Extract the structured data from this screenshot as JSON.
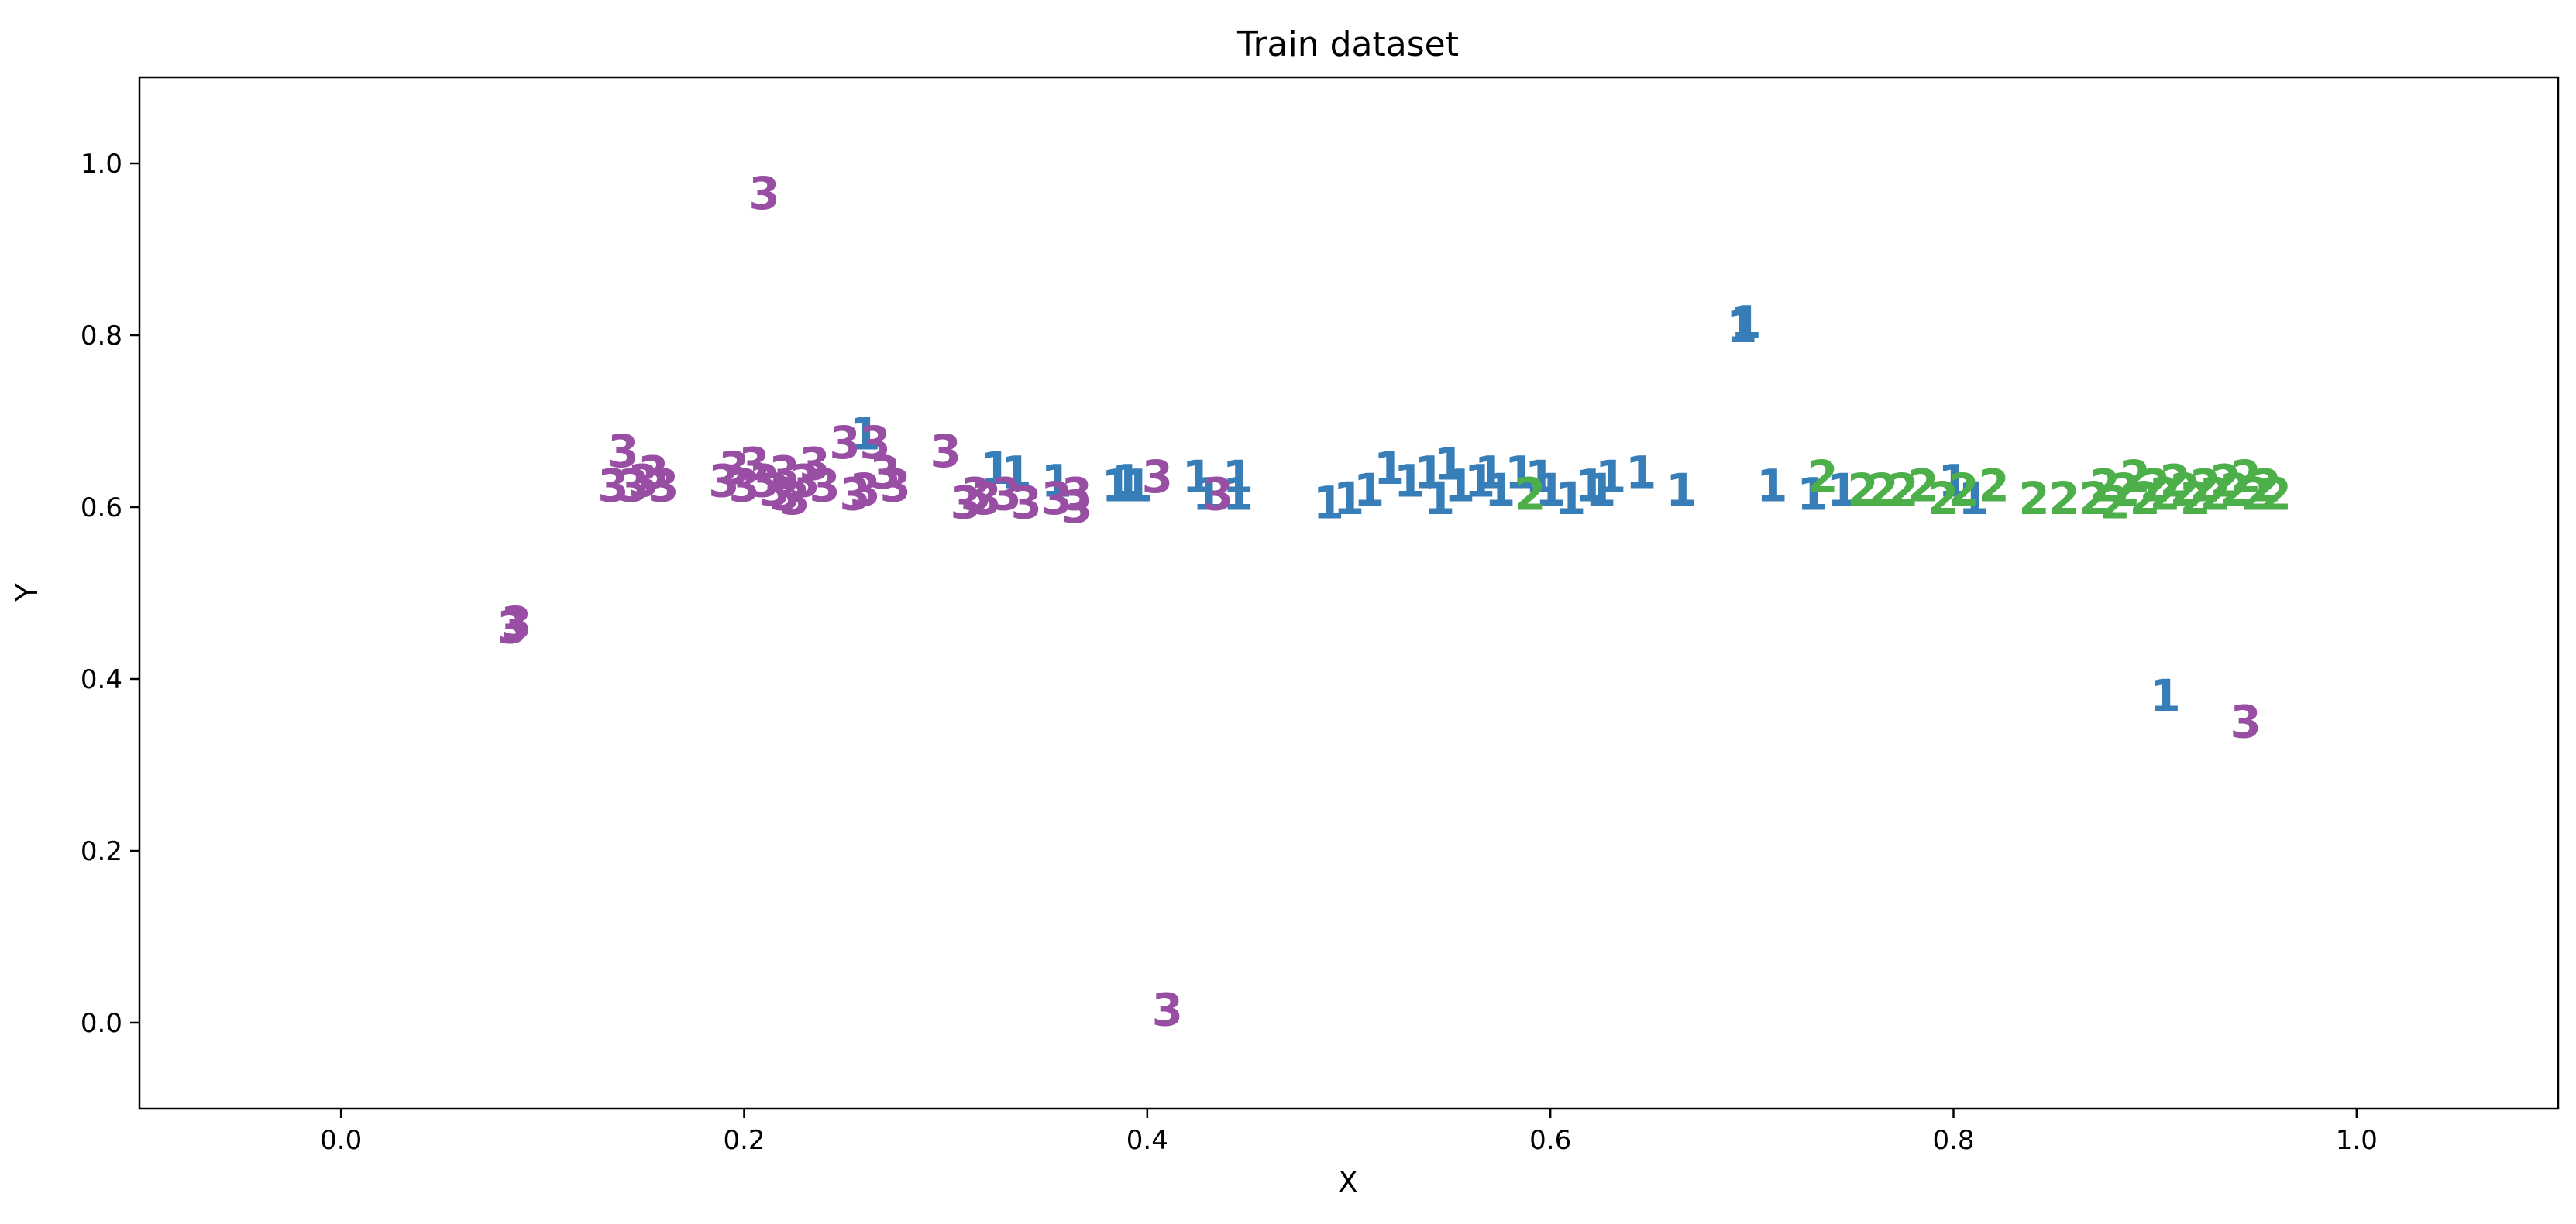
{
  "chart_data": {
    "type": "scatter",
    "title": "Train dataset",
    "xlabel": "X",
    "ylabel": "Y",
    "xlim": [
      -0.1,
      1.1
    ],
    "ylim": [
      -0.1,
      1.1
    ],
    "xticks": [
      "0.0",
      "0.2",
      "0.4",
      "0.6",
      "0.8",
      "1.0"
    ],
    "yticks": [
      "0.0",
      "0.2",
      "0.4",
      "0.6",
      "0.8",
      "1.0"
    ],
    "xtick_values": [
      0.0,
      0.2,
      0.4,
      0.6,
      0.8,
      1.0
    ],
    "ytick_values": [
      0.0,
      0.2,
      0.4,
      0.6,
      0.8,
      1.0
    ],
    "grid": false,
    "marker": "class label text",
    "series": [
      {
        "label": "1",
        "color": "#377eb8",
        "points": [
          [
            0.695,
            0.81
          ],
          [
            0.697,
            0.815
          ],
          [
            0.905,
            0.38
          ],
          [
            0.26,
            0.685
          ],
          [
            0.325,
            0.645
          ],
          [
            0.335,
            0.64
          ],
          [
            0.355,
            0.63
          ],
          [
            0.385,
            0.625
          ],
          [
            0.395,
            0.625
          ],
          [
            0.425,
            0.635
          ],
          [
            0.445,
            0.635
          ],
          [
            0.43,
            0.615
          ],
          [
            0.445,
            0.615
          ],
          [
            0.49,
            0.605
          ],
          [
            0.5,
            0.61
          ],
          [
            0.51,
            0.62
          ],
          [
            0.52,
            0.645
          ],
          [
            0.53,
            0.63
          ],
          [
            0.54,
            0.64
          ],
          [
            0.545,
            0.61
          ],
          [
            0.55,
            0.65
          ],
          [
            0.555,
            0.625
          ],
          [
            0.565,
            0.63
          ],
          [
            0.575,
            0.62
          ],
          [
            0.585,
            0.64
          ],
          [
            0.595,
            0.635
          ],
          [
            0.6,
            0.62
          ],
          [
            0.61,
            0.61
          ],
          [
            0.625,
            0.62
          ],
          [
            0.63,
            0.635
          ],
          [
            0.645,
            0.64
          ],
          [
            0.665,
            0.62
          ],
          [
            0.71,
            0.625
          ],
          [
            0.73,
            0.615
          ],
          [
            0.745,
            0.62
          ],
          [
            0.8,
            0.63
          ],
          [
            0.81,
            0.61
          ],
          [
            0.39,
            0.63
          ],
          [
            0.62,
            0.625
          ],
          [
            0.57,
            0.64
          ]
        ]
      },
      {
        "label": "2",
        "color": "#4daf4a",
        "points": [
          [
            0.59,
            0.615
          ],
          [
            0.735,
            0.635
          ],
          [
            0.755,
            0.62
          ],
          [
            0.765,
            0.62
          ],
          [
            0.775,
            0.62
          ],
          [
            0.785,
            0.625
          ],
          [
            0.795,
            0.61
          ],
          [
            0.805,
            0.62
          ],
          [
            0.82,
            0.625
          ],
          [
            0.84,
            0.61
          ],
          [
            0.855,
            0.61
          ],
          [
            0.87,
            0.61
          ],
          [
            0.875,
            0.625
          ],
          [
            0.885,
            0.62
          ],
          [
            0.89,
            0.635
          ],
          [
            0.895,
            0.61
          ],
          [
            0.9,
            0.625
          ],
          [
            0.905,
            0.615
          ],
          [
            0.91,
            0.63
          ],
          [
            0.915,
            0.62
          ],
          [
            0.92,
            0.61
          ],
          [
            0.925,
            0.625
          ],
          [
            0.93,
            0.615
          ],
          [
            0.935,
            0.63
          ],
          [
            0.94,
            0.62
          ],
          [
            0.945,
            0.635
          ],
          [
            0.95,
            0.615
          ],
          [
            0.955,
            0.625
          ],
          [
            0.96,
            0.615
          ],
          [
            0.88,
            0.605
          ]
        ]
      },
      {
        "label": "3",
        "color": "#984ea3",
        "points": [
          [
            0.21,
            0.965
          ],
          [
            0.085,
            0.46
          ],
          [
            0.087,
            0.465
          ],
          [
            0.945,
            0.35
          ],
          [
            0.41,
            0.015
          ],
          [
            0.14,
            0.665
          ],
          [
            0.135,
            0.625
          ],
          [
            0.145,
            0.625
          ],
          [
            0.15,
            0.63
          ],
          [
            0.155,
            0.64
          ],
          [
            0.16,
            0.625
          ],
          [
            0.19,
            0.63
          ],
          [
            0.195,
            0.645
          ],
          [
            0.2,
            0.625
          ],
          [
            0.205,
            0.65
          ],
          [
            0.21,
            0.63
          ],
          [
            0.215,
            0.62
          ],
          [
            0.22,
            0.64
          ],
          [
            0.225,
            0.61
          ],
          [
            0.23,
            0.63
          ],
          [
            0.235,
            0.65
          ],
          [
            0.24,
            0.625
          ],
          [
            0.25,
            0.675
          ],
          [
            0.26,
            0.62
          ],
          [
            0.265,
            0.675
          ],
          [
            0.27,
            0.64
          ],
          [
            0.275,
            0.625
          ],
          [
            0.3,
            0.665
          ],
          [
            0.31,
            0.605
          ],
          [
            0.315,
            0.615
          ],
          [
            0.32,
            0.61
          ],
          [
            0.33,
            0.615
          ],
          [
            0.34,
            0.605
          ],
          [
            0.355,
            0.61
          ],
          [
            0.365,
            0.615
          ],
          [
            0.365,
            0.6
          ],
          [
            0.405,
            0.635
          ],
          [
            0.435,
            0.615
          ],
          [
            0.22,
            0.615
          ],
          [
            0.255,
            0.615
          ]
        ]
      }
    ]
  }
}
